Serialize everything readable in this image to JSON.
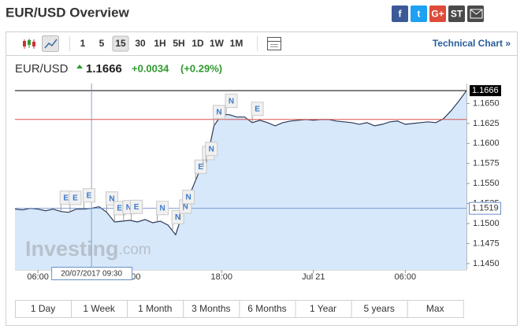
{
  "header": {
    "title": "EUR/USD Overview",
    "share": [
      "f",
      "t",
      "G+",
      "ST"
    ]
  },
  "toolbar": {
    "intervals": [
      "1",
      "5",
      "15",
      "30",
      "1H",
      "5H",
      "1D",
      "1W",
      "1M"
    ],
    "active": "15",
    "link": "Technical Chart »"
  },
  "quote": {
    "symbol": "EUR/USD",
    "price": "1.1666",
    "change": "+0.0034",
    "change_pct": "(+0.29%)"
  },
  "watermark": {
    "brand": "Investing",
    "domain": ".com"
  },
  "chart_data": {
    "type": "area",
    "x": [
      4.5,
      5,
      5.5,
      6,
      6.5,
      7,
      7.5,
      8,
      8.5,
      9,
      9.5,
      10,
      10.5,
      11,
      11.5,
      12,
      12.5,
      13,
      13.5,
      14,
      14.5,
      15,
      15.5,
      16,
      16.5,
      17,
      17.5,
      18,
      18.5,
      19,
      19.5,
      20,
      20.5,
      21,
      21.5,
      22,
      22.5,
      23,
      23.5,
      24,
      24.5,
      25,
      25.5,
      26,
      26.5,
      27,
      27.5,
      28,
      28.5,
      29,
      29.5,
      30,
      30.5,
      31,
      31.5,
      32,
      32.5,
      33,
      33.5,
      34
    ],
    "series": [
      {
        "name": "EUR/USD",
        "color": "#2d3a57",
        "fill": "#d6e8fa",
        "values": [
          1.1518,
          1.1517,
          1.1519,
          1.1518,
          1.1516,
          1.1518,
          1.1515,
          1.1514,
          1.1518,
          1.1518,
          1.1519,
          1.1521,
          1.1514,
          1.1502,
          1.1503,
          1.1504,
          1.1502,
          1.1505,
          1.1501,
          1.1503,
          1.1498,
          1.1486,
          1.1516,
          1.154,
          1.1563,
          1.1576,
          1.1622,
          1.1636,
          1.1636,
          1.1633,
          1.1633,
          1.1626,
          1.1629,
          1.1626,
          1.1622,
          1.1626,
          1.1628,
          1.1629,
          1.163,
          1.1629,
          1.163,
          1.163,
          1.1628,
          1.1627,
          1.1626,
          1.1624,
          1.1626,
          1.1622,
          1.1624,
          1.1627,
          1.1628,
          1.1624,
          1.1625,
          1.1626,
          1.1627,
          1.1626,
          1.1631,
          1.1641,
          1.1653,
          1.1666
        ]
      }
    ],
    "xlim": [
      4.5,
      34
    ],
    "xticks": [
      {
        "value": 6,
        "label": "06:00"
      },
      {
        "value": 12,
        "label": "12:00"
      },
      {
        "value": 18,
        "label": "18:00"
      },
      {
        "value": 24,
        "label": "Jul 21"
      },
      {
        "value": 30,
        "label": "06:00"
      }
    ],
    "ylim": [
      1.1442,
      1.1675
    ],
    "yticks": [
      {
        "value": 1.145,
        "label": "1.1450"
      },
      1.1475,
      {
        "value": 1.15,
        "label": "1.1500"
      },
      1.1525,
      {
        "value": 1.155,
        "label": "1.1550"
      },
      1.1575,
      {
        "value": 1.16,
        "label": "1.1600"
      },
      1.1625,
      {
        "value": 1.165,
        "label": "1.1650"
      }
    ],
    "last_value": 1.1666,
    "reference_line": 1.163,
    "reference_color": "#d9534f",
    "crosshair": {
      "x": 9.5,
      "x_label": "20/07/2017 09:30",
      "y": 1.1519
    },
    "events": [
      {
        "label": "E",
        "x": 7.5
      },
      {
        "label": "E",
        "x": 8.1
      },
      {
        "label": "E",
        "x": 9.0
      },
      {
        "label": "N",
        "x": 10.5
      },
      {
        "label": "E",
        "x": 11.0
      },
      {
        "label": "N",
        "x": 11.6
      },
      {
        "label": "E",
        "x": 12.1
      },
      {
        "label": "N",
        "x": 13.8
      },
      {
        "label": "N",
        "x": 14.8
      },
      {
        "label": "N",
        "x": 15.3
      },
      {
        "label": "N",
        "x": 15.5
      },
      {
        "label": "E",
        "x": 16.3
      },
      {
        "label": "E",
        "x": 16.8
      },
      {
        "label": "N",
        "x": 17.0
      },
      {
        "label": "N",
        "x": 17.5
      },
      {
        "label": "N",
        "x": 18.3
      },
      {
        "label": "E",
        "x": 20.0
      }
    ]
  },
  "ranges": [
    "1 Day",
    "1 Week",
    "1 Month",
    "3 Months",
    "6 Months",
    "1 Year",
    "5 years",
    "Max"
  ]
}
